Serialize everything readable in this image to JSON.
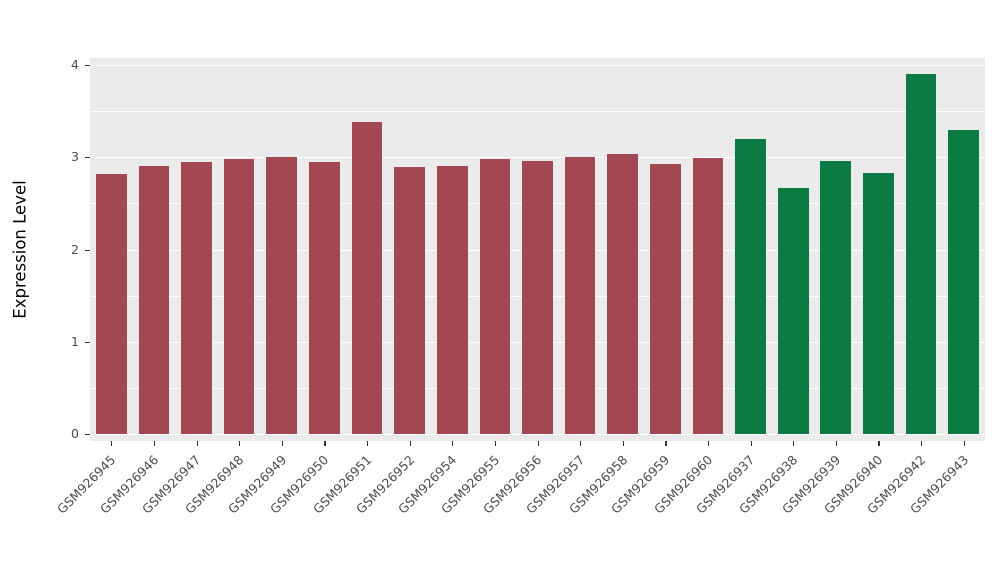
{
  "figure": {
    "background": "#FFFFFF"
  },
  "chart_data": {
    "type": "bar",
    "title": "",
    "xlabel": "",
    "ylabel": "Expression Level",
    "ylim": [
      0,
      4
    ],
    "yticks": [
      0,
      1,
      2,
      3,
      4
    ],
    "minor_ticks": [
      0.5,
      1.5,
      2.5,
      3.5
    ],
    "grid": "on",
    "legend": "none",
    "panel_background": "#EBEBEB",
    "grid_color": "#FFFFFF",
    "axis_text_color": "#4D4D4D",
    "tick_mark_color": "#333333",
    "categories": [
      "GSM926945",
      "GSM926946",
      "GSM926947",
      "GSM926948",
      "GSM926949",
      "GSM926950",
      "GSM926951",
      "GSM926952",
      "GSM926954",
      "GSM926955",
      "GSM926956",
      "GSM926957",
      "GSM926958",
      "GSM926959",
      "GSM926960",
      "GSM926937",
      "GSM926938",
      "GSM926939",
      "GSM926940",
      "GSM926942",
      "GSM926943"
    ],
    "values": [
      2.82,
      2.9,
      2.95,
      2.98,
      3.0,
      2.95,
      3.38,
      2.89,
      2.9,
      2.98,
      2.96,
      3.0,
      3.03,
      2.93,
      2.99,
      3.2,
      2.67,
      2.96,
      2.83,
      3.9,
      3.3
    ],
    "groups": [
      "maroon",
      "maroon",
      "maroon",
      "maroon",
      "maroon",
      "maroon",
      "maroon",
      "maroon",
      "maroon",
      "maroon",
      "maroon",
      "maroon",
      "maroon",
      "maroon",
      "maroon",
      "green",
      "green",
      "green",
      "green",
      "green",
      "green"
    ],
    "group_colors": {
      "maroon": "#A14852",
      "green": "#0C7B43"
    }
  }
}
